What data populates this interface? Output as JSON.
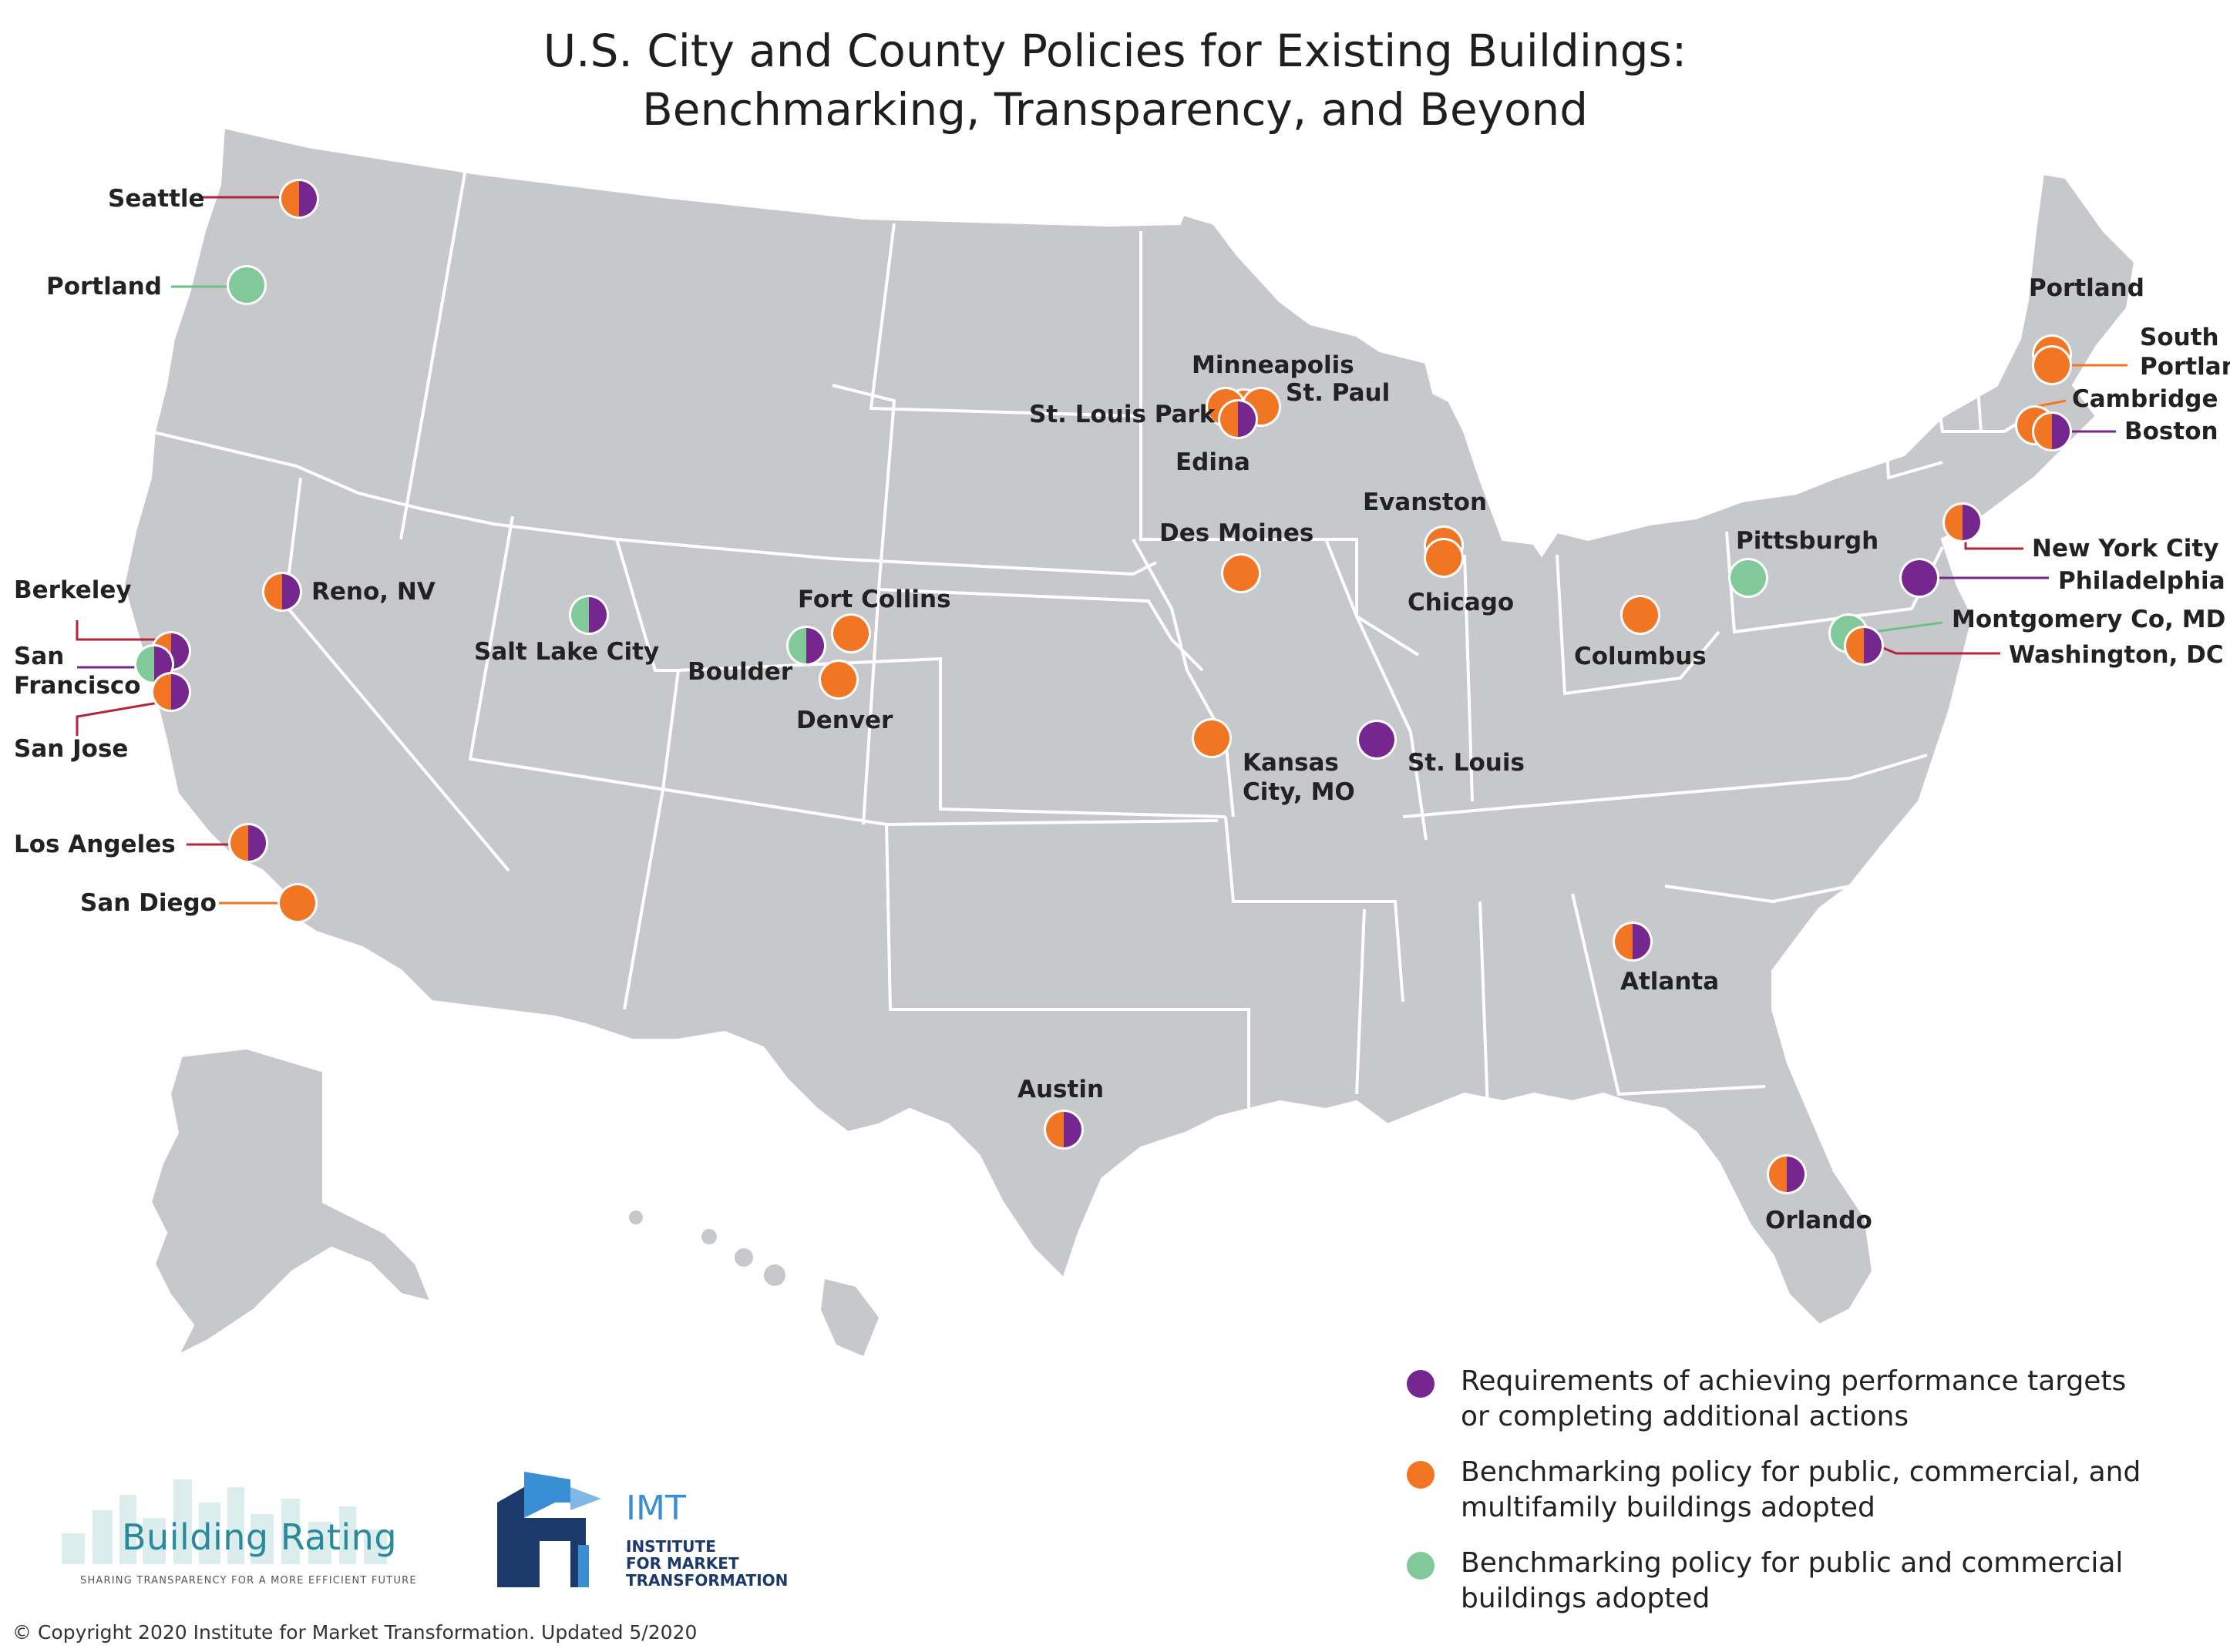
{
  "title_line1": "U.S. City and County Policies for Existing Buildings:",
  "title_line2": "Benchmarking, Transparency, and Beyond",
  "colors": {
    "purple": "#76268f",
    "orange": "#f27524",
    "green": "#82c99a",
    "land": "#c7c8cc",
    "border": "#ffffff"
  },
  "legend": [
    {
      "color": "purple",
      "line1": "Requirements of achieving performance targets",
      "line2": "or completing additional actions"
    },
    {
      "color": "orange",
      "line1": "Benchmarking policy for public, commercial, and",
      "line2": "multifamily buildings adopted"
    },
    {
      "color": "green",
      "line1": "Benchmarking policy for public and commercial",
      "line2": "buildings adopted"
    }
  ],
  "cities": [
    {
      "name": "Seattle",
      "lat": 47.6,
      "lon": -122.3,
      "policies": [
        "orange",
        "purple"
      ]
    },
    {
      "name": "Portland",
      "lat": 45.5,
      "lon": -122.7,
      "policies": [
        "green"
      ]
    },
    {
      "name": "Berkeley",
      "lat": 37.9,
      "lon": -122.3,
      "policies": [
        "orange",
        "purple"
      ]
    },
    {
      "name": "San Francisco",
      "lat": 37.8,
      "lon": -122.4,
      "policies": [
        "green",
        "purple"
      ]
    },
    {
      "name": "San Jose",
      "lat": 37.3,
      "lon": -121.9,
      "policies": [
        "orange",
        "purple"
      ]
    },
    {
      "name": "Los Angeles",
      "lat": 34.05,
      "lon": -118.2,
      "policies": [
        "orange",
        "purple"
      ]
    },
    {
      "name": "San Diego",
      "lat": 32.7,
      "lon": -117.2,
      "policies": [
        "orange"
      ]
    },
    {
      "name": "Reno, NV",
      "lat": 39.5,
      "lon": -119.8,
      "policies": [
        "orange",
        "purple"
      ]
    },
    {
      "name": "Salt Lake City",
      "lat": 40.8,
      "lon": -111.9,
      "policies": [
        "green",
        "purple"
      ]
    },
    {
      "name": "Boulder",
      "lat": 40.0,
      "lon": -105.3,
      "policies": [
        "green",
        "purple"
      ]
    },
    {
      "name": "Fort Collins",
      "lat": 40.6,
      "lon": -105.1,
      "policies": [
        "orange"
      ]
    },
    {
      "name": "Denver",
      "lat": 39.7,
      "lon": -105.0,
      "policies": [
        "orange"
      ]
    },
    {
      "name": "Minneapolis",
      "lat": 44.98,
      "lon": -93.27,
      "policies": [
        "orange"
      ]
    },
    {
      "name": "St. Paul",
      "lat": 44.95,
      "lon": -93.09,
      "policies": [
        "orange"
      ]
    },
    {
      "name": "St. Louis Park",
      "lat": 44.95,
      "lon": -93.35,
      "policies": [
        "orange"
      ]
    },
    {
      "name": "Edina",
      "lat": 44.89,
      "lon": -93.35,
      "policies": [
        "orange",
        "purple"
      ]
    },
    {
      "name": "Des Moines",
      "lat": 41.6,
      "lon": -93.6,
      "policies": [
        "orange"
      ]
    },
    {
      "name": "Kansas City, MO",
      "lat": 39.1,
      "lon": -94.6,
      "policies": [
        "orange"
      ]
    },
    {
      "name": "St. Louis",
      "lat": 38.6,
      "lon": -90.2,
      "policies": [
        "purple"
      ]
    },
    {
      "name": "Evanston",
      "lat": 42.05,
      "lon": -87.7,
      "policies": [
        "orange"
      ]
    },
    {
      "name": "Chicago",
      "lat": 41.88,
      "lon": -87.63,
      "policies": [
        "orange"
      ]
    },
    {
      "name": "Columbus",
      "lat": 39.96,
      "lon": -83.0,
      "policies": [
        "orange"
      ]
    },
    {
      "name": "Pittsburgh",
      "lat": 40.44,
      "lon": -80.0,
      "policies": [
        "green"
      ]
    },
    {
      "name": "Atlanta",
      "lat": 33.75,
      "lon": -84.39,
      "policies": [
        "orange",
        "purple"
      ]
    },
    {
      "name": "Orlando",
      "lat": 28.54,
      "lon": -81.38,
      "policies": [
        "orange",
        "purple"
      ]
    },
    {
      "name": "Austin",
      "lat": 30.27,
      "lon": -97.74,
      "policies": [
        "orange",
        "purple"
      ]
    },
    {
      "name": "Portland",
      "lat": 43.66,
      "lon": -70.26,
      "policies": [
        "orange"
      ]
    },
    {
      "name": "South Portland",
      "lat": 43.64,
      "lon": -70.24,
      "policies": [
        "orange"
      ]
    },
    {
      "name": "Cambridge",
      "lat": 42.37,
      "lon": -71.1,
      "policies": [
        "orange"
      ]
    },
    {
      "name": "Boston",
      "lat": 42.36,
      "lon": -71.06,
      "policies": [
        "orange",
        "purple"
      ]
    },
    {
      "name": "New York City",
      "lat": 40.71,
      "lon": -74.0,
      "policies": [
        "orange",
        "purple"
      ]
    },
    {
      "name": "Philadelphia",
      "lat": 39.95,
      "lon": -75.17,
      "policies": [
        "purple"
      ]
    },
    {
      "name": "Montgomery Co, MD",
      "lat": 39.15,
      "lon": -77.2,
      "policies": [
        "green"
      ]
    },
    {
      "name": "Washington, DC",
      "lat": 38.9,
      "lon": -77.03,
      "policies": [
        "orange",
        "purple"
      ]
    }
  ],
  "logo_building_rating": "Building Rating",
  "logo_building_rating_tagline": "SHARING TRANSPARENCY FOR A MORE EFFICIENT FUTURE",
  "logo_imt": "IMT",
  "logo_imt_line1": "INSTITUTE",
  "logo_imt_line2": "FOR MARKET",
  "logo_imt_line3": "TRANSFORMATION",
  "copyright": "© Copyright 2020 Institute for Market Transformation. Updated 5/2020"
}
